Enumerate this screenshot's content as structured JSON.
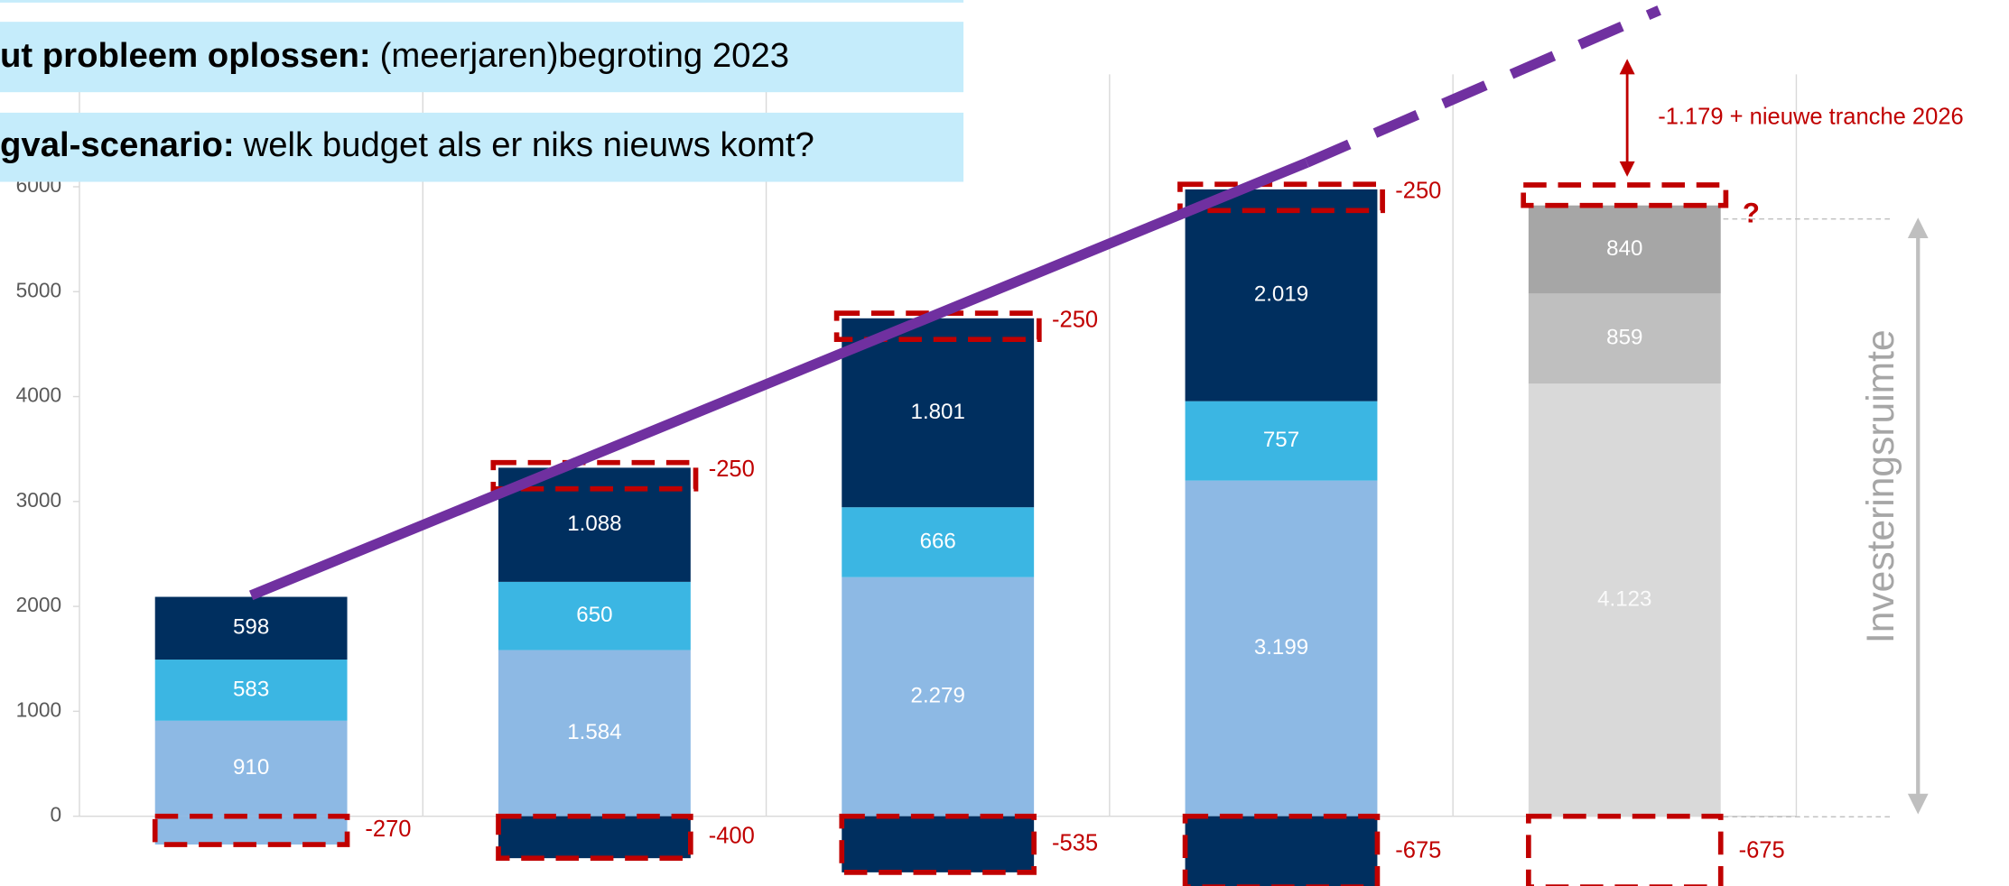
{
  "banners": [
    {
      "bold": "ut probleem oplossen:",
      "text": "(meerjaren)begroting 2023"
    },
    {
      "bold": "gval-scenario:",
      "text": "welk budget als er niks nieuws komt?"
    }
  ],
  "chart_data": {
    "type": "bar",
    "stacked": true,
    "ylim": [
      -665,
      7780
    ],
    "yticks": [
      0,
      1000,
      2000,
      3000,
      4000,
      5000,
      6000
    ],
    "series": [
      {
        "color": "#8db9e4",
        "values": [
          910,
          1584,
          2279,
          3199,
          null
        ],
        "value_labels": [
          "910",
          "1.584",
          "2.279",
          "3.199",
          null
        ]
      },
      {
        "color": "#3bb6e3",
        "values": [
          583,
          650,
          666,
          757,
          null
        ],
        "value_labels": [
          "583",
          "650",
          "666",
          "757",
          null
        ]
      },
      {
        "color": "#002f5f",
        "values": [
          598,
          1088,
          1801,
          2019,
          null
        ],
        "value_labels": [
          "598",
          "1.088",
          "1.801",
          "2.019",
          null
        ]
      },
      {
        "color": "#d9d9d9",
        "values": [
          null,
          null,
          null,
          null,
          4123
        ],
        "value_labels": [
          null,
          null,
          null,
          null,
          "4.123"
        ]
      },
      {
        "color": "#bfbfbf",
        "values": [
          null,
          null,
          null,
          null,
          859
        ],
        "value_labels": [
          null,
          null,
          null,
          null,
          "859"
        ]
      },
      {
        "color": "#a6a6a6",
        "values": [
          null,
          null,
          null,
          null,
          840
        ],
        "value_labels": [
          null,
          null,
          null,
          null,
          "840"
        ]
      }
    ],
    "negatives": {
      "colors": [
        "#8db9e4",
        "#002f5f",
        "#002f5f",
        "#002f5f",
        "none"
      ],
      "values": [
        -270,
        -400,
        -535,
        -675,
        -675
      ]
    },
    "reductions": {
      "values": [
        null,
        -250,
        -250,
        -250,
        null
      ]
    },
    "annotations": [
      "-1.179 + nieuwe tranche 2026",
      "?",
      "Investeringsruimte"
    ]
  }
}
